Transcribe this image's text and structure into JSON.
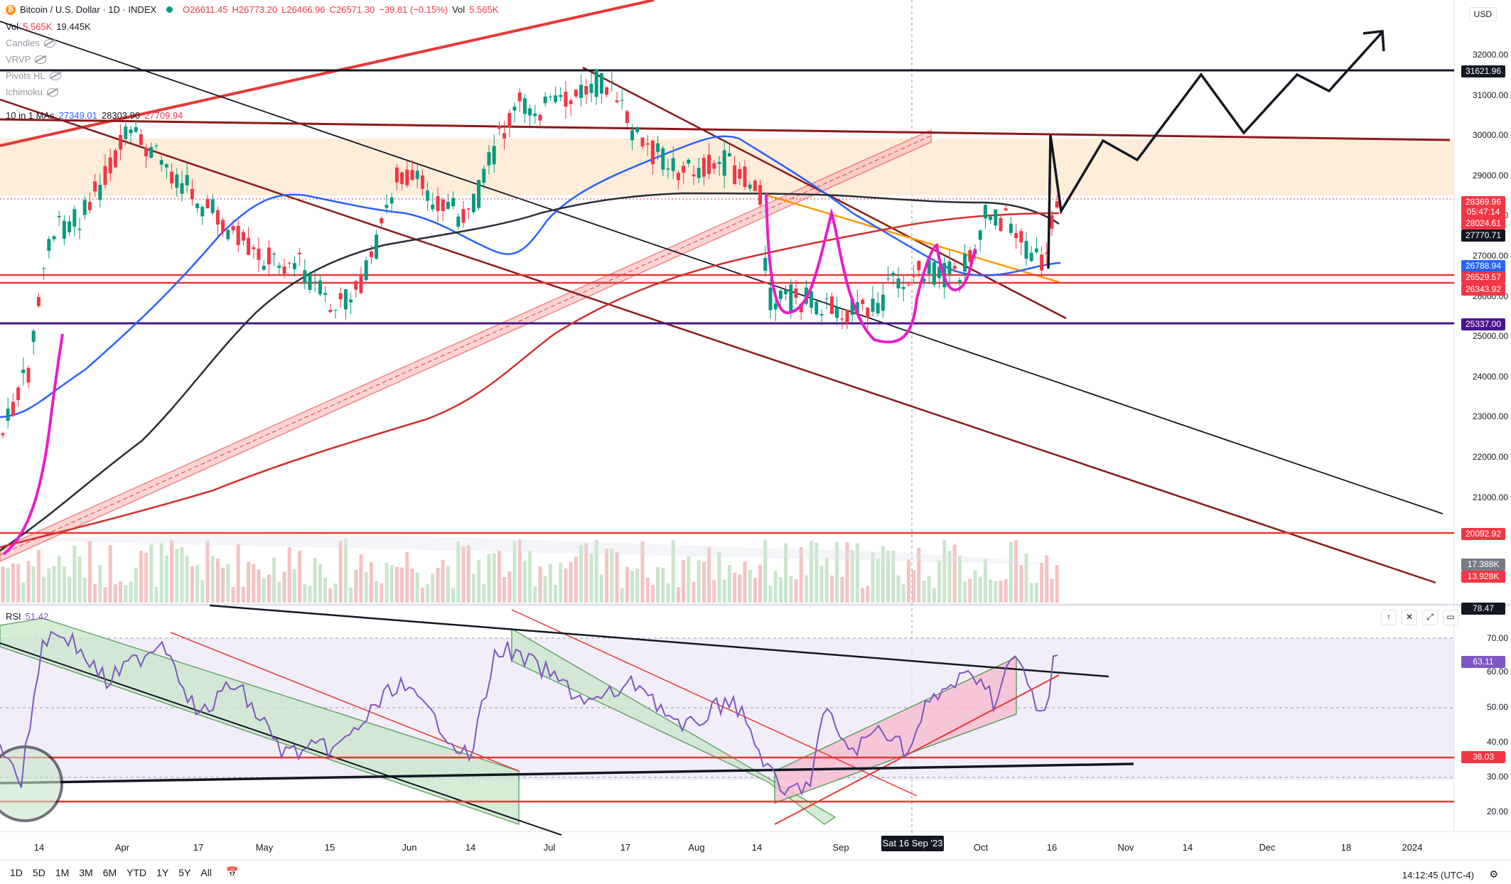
{
  "header": {
    "symbol": "Bitcoin / U.S. Dollar · 1D · INDEX",
    "open": "O26611.45",
    "high": "H26773.20",
    "low": "L26466.96",
    "close": "C26571.30",
    "change": "−39.81 (−0.15%)",
    "vol_label": "Vol",
    "vol_value": "5.565K"
  },
  "indicators": {
    "vol": {
      "label": "Vol",
      "v1": "5.565K",
      "v2": "19.445K"
    },
    "candles": "Candles",
    "vrvp": "VRVP",
    "pivots": "Pivots HL",
    "ichimoku": "Ichimoku",
    "mas": {
      "label": "10 in 1 MAs",
      "v1": "27349.01",
      "v2": "28303.90",
      "v3": "27709.94"
    }
  },
  "currency": "USD",
  "price_axis": [
    "32000.00",
    "31000.00",
    "30000.00",
    "29000.00",
    "28000.00",
    "27000.00",
    "26000.00",
    "25000.00",
    "24000.00",
    "23000.00",
    "22000.00",
    "21000.00"
  ],
  "price_tags": [
    {
      "text": "31621.96",
      "color": "#131722"
    },
    {
      "text": "28369.96",
      "color": "#f23645"
    },
    {
      "text": "05:47:14",
      "color": "#f23645"
    },
    {
      "text": "28024.61",
      "color": "#f23645"
    },
    {
      "text": "27770.71",
      "color": "#131722"
    },
    {
      "text": "26788.94",
      "color": "#2962ff"
    },
    {
      "text": "26529.57",
      "color": "#f23645"
    },
    {
      "text": "26343.92",
      "color": "#f23645"
    },
    {
      "text": "25337.00",
      "color": "#4a148c"
    },
    {
      "text": "20092.92",
      "color": "#f23645"
    },
    {
      "text": "17.388K",
      "color": "#787b86"
    },
    {
      "text": "13.928K",
      "color": "#f23645"
    }
  ],
  "rsi": {
    "label": "RSI",
    "value": "51.42",
    "axis": [
      "78.47",
      "70.00",
      "60.00",
      "50.00",
      "40.00",
      "30.00",
      "20.00"
    ],
    "tags": [
      {
        "text": "63.11",
        "color": "#7e57c2"
      },
      {
        "text": "36.03",
        "color": "#f23645"
      }
    ]
  },
  "date_axis": [
    "14",
    "Apr",
    "17",
    "May",
    "15",
    "Jun",
    "14",
    "Jul",
    "17",
    "Aug",
    "14",
    "Sep",
    "Oct",
    "16",
    "Nov",
    "14",
    "Dec",
    "18",
    "2024"
  ],
  "date_crosshair": "Sat 16 Sep '23",
  "toolbar": {
    "ranges": [
      "1D",
      "5D",
      "1M",
      "3M",
      "6M",
      "YTD",
      "1Y",
      "5Y",
      "All"
    ],
    "clock": "14:12:45 (UTC-4)"
  },
  "chart_data": {
    "type": "candlestick",
    "x_range": [
      "2023-03-07",
      "2024-01-02"
    ],
    "ylim": [
      20000,
      32800
    ],
    "key_levels": [
      31621.96,
      30000,
      26529.57,
      26343.92,
      25337.0,
      20092.92
    ],
    "ma_values": {
      "blue": 26788.94,
      "black": 27770.71,
      "red": 28024.61
    },
    "last_close": 26571.3,
    "rsi_last": 63.11,
    "rsi_levels": [
      70,
      50,
      30
    ]
  }
}
